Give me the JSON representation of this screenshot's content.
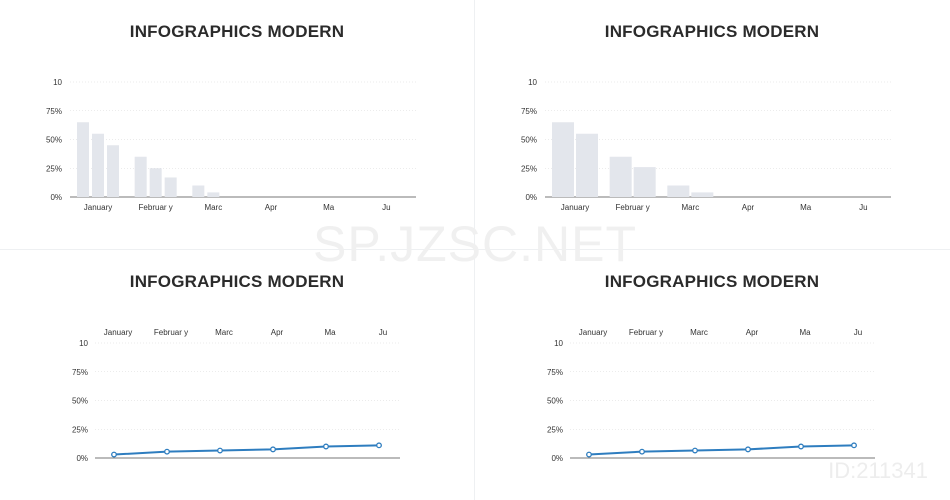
{
  "watermark": "SP.JZSC.NET",
  "id_label": "ID:211341",
  "colors": {
    "bar": "#e3e6ec",
    "line": "#2e7dbf",
    "grid": "#d8d8d8",
    "axis": "#777777",
    "text": "#333333"
  },
  "chart_data": [
    {
      "type": "bar",
      "title": "INFOGRAPHICS MODERN",
      "categories": [
        "January",
        "Februar y",
        "Marc",
        "Apr",
        "Ma",
        "Ju"
      ],
      "y_ticks": [
        "0%",
        "25%",
        "50%",
        "75%",
        "10"
      ],
      "ylim": [
        0,
        100
      ],
      "series": [
        {
          "values": [
            65,
            35,
            10,
            0,
            0,
            0
          ]
        },
        {
          "values": [
            55,
            25,
            4,
            0,
            0,
            0
          ]
        },
        {
          "values": [
            45,
            17,
            0,
            0,
            0,
            0
          ]
        }
      ]
    },
    {
      "type": "bar",
      "title": "INFOGRAPHICS MODERN",
      "categories": [
        "January",
        "Februar y",
        "Marc",
        "Apr",
        "Ma",
        "Ju"
      ],
      "y_ticks": [
        "0%",
        "25%",
        "50%",
        "75%",
        "10"
      ],
      "ylim": [
        0,
        100
      ],
      "series": [
        {
          "values": [
            65,
            35,
            10,
            0,
            0,
            0
          ]
        },
        {
          "values": [
            55,
            26,
            4,
            0,
            0,
            0
          ]
        }
      ]
    },
    {
      "type": "line",
      "title": "INFOGRAPHICS MODERN",
      "categories": [
        "January",
        "Februar y",
        "Marc",
        "Apr",
        "Ma",
        "Ju"
      ],
      "y_ticks": [
        "0%",
        "25%",
        "50%",
        "75%",
        "10"
      ],
      "ylim": [
        0,
        100
      ],
      "series": [
        {
          "values": [
            3,
            5.5,
            6.5,
            7.5,
            10,
            11
          ]
        }
      ]
    },
    {
      "type": "line",
      "title": "INFOGRAPHICS MODERN",
      "categories": [
        "January",
        "Februar y",
        "Marc",
        "Apr",
        "Ma",
        "Ju"
      ],
      "y_ticks": [
        "0%",
        "25%",
        "50%",
        "75%",
        "10"
      ],
      "ylim": [
        0,
        100
      ],
      "series": [
        {
          "values": [
            3,
            5.5,
            6.5,
            7.5,
            10,
            11
          ]
        }
      ]
    }
  ]
}
